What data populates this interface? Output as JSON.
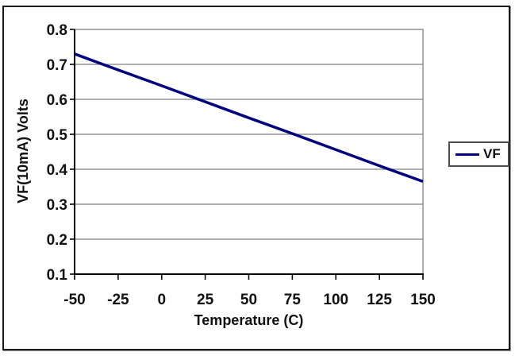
{
  "figure": {
    "background": "#ffffff",
    "border_color": "#1a1a1a"
  },
  "chart_data": {
    "type": "line",
    "title": "",
    "xlabel": "Temperature (C)",
    "ylabel": "VF(10mA) Volts",
    "x": [
      -50,
      -25,
      0,
      25,
      50,
      75,
      100,
      125,
      150
    ],
    "series": [
      {
        "name": "VF",
        "color": "#000080",
        "values": [
          0.73,
          0.684,
          0.639,
          0.593,
          0.547,
          0.502,
          0.456,
          0.41,
          0.365
        ]
      }
    ],
    "xlim": [
      -50,
      150
    ],
    "ylim": [
      0.1,
      0.8
    ],
    "x_ticks": [
      -50,
      -25,
      0,
      25,
      50,
      75,
      100,
      125,
      150
    ],
    "y_ticks": [
      0.1,
      0.2,
      0.3,
      0.4,
      0.5,
      0.6,
      0.7,
      0.8
    ],
    "y_tick_decimals": 1,
    "grid": "horizontal-y",
    "legend_position": "right",
    "colors": {
      "line": "#000080",
      "gridline": "#808080",
      "axis": "#000000",
      "text": "#111111",
      "legend_border": "#4d4d4d"
    }
  }
}
